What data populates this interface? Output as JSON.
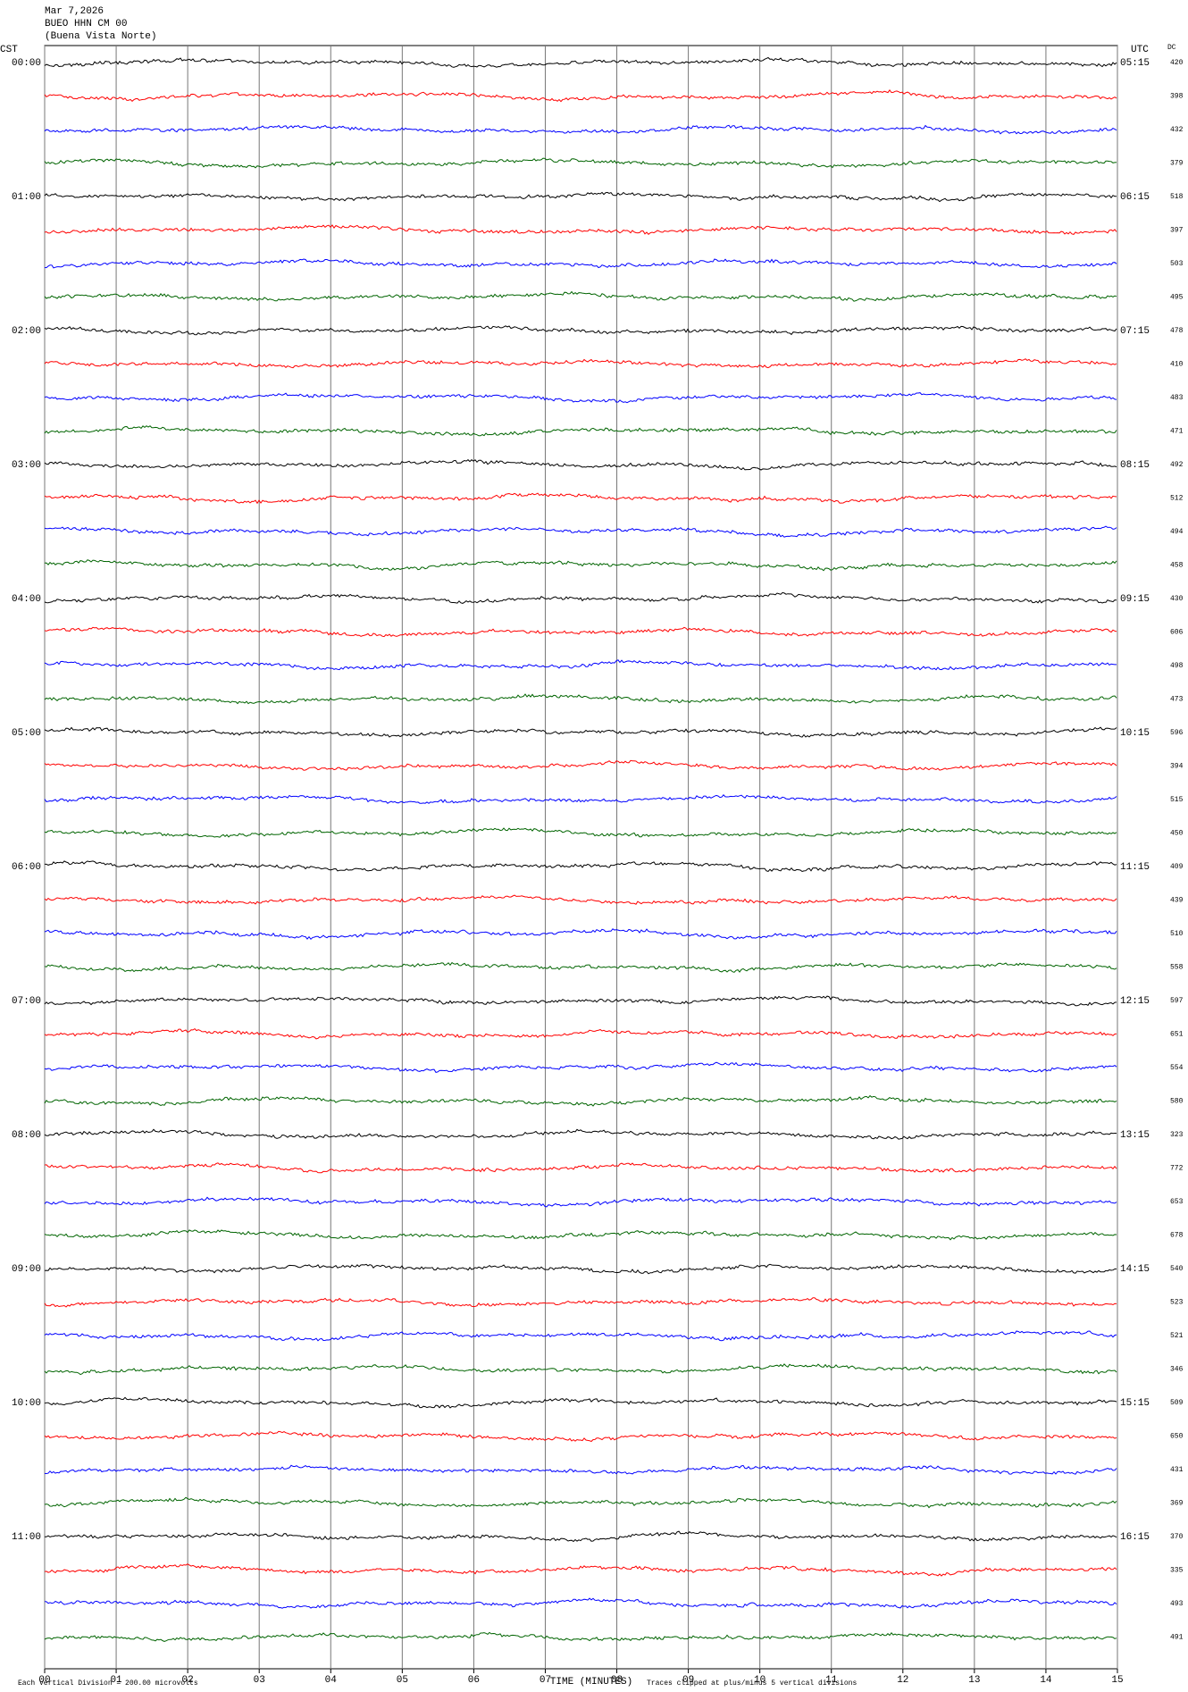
{
  "header": {
    "date": "Mar 7,2026",
    "station": "BUEO HHN CM 00",
    "location": "(Buena Vista Norte)"
  },
  "left_axis_title": "CST",
  "right_axis_title": "UTC",
  "dc_title": "DC",
  "cst_labels": [
    "00:00",
    "01:00",
    "02:00",
    "03:00",
    "04:00",
    "05:00",
    "06:00",
    "07:00",
    "08:00",
    "09:00",
    "10:00",
    "11:00"
  ],
  "utc_labels": [
    "05:15",
    "06:15",
    "07:15",
    "08:15",
    "09:15",
    "10:15",
    "11:15",
    "12:15",
    "13:15",
    "14:15",
    "15:15",
    "16:15"
  ],
  "dc_values": [
    420,
    398,
    432,
    379,
    518,
    397,
    503,
    495,
    478,
    410,
    483,
    471,
    492,
    512,
    494,
    458,
    430,
    606,
    498,
    473,
    596,
    394,
    515,
    450,
    409,
    439,
    510,
    558,
    597,
    651,
    554,
    580,
    323,
    772,
    653,
    678,
    540,
    523,
    521,
    346,
    509,
    650,
    431,
    369,
    370,
    335,
    493,
    491
  ],
  "trace_colors": [
    "#000000",
    "#ff0000",
    "#0000ff",
    "#006400"
  ],
  "x_axis": {
    "title": "TIME (MINUTES)",
    "xlim": [
      0,
      15
    ],
    "xticks": [
      {
        "value": 0,
        "label": "00"
      },
      {
        "value": 1,
        "label": "01"
      },
      {
        "value": 2,
        "label": "02"
      },
      {
        "value": 3,
        "label": "03"
      },
      {
        "value": 4,
        "label": "04"
      },
      {
        "value": 5,
        "label": "05"
      },
      {
        "value": 6,
        "label": "06"
      },
      {
        "value": 7,
        "label": "07"
      },
      {
        "value": 8,
        "label": "08"
      },
      {
        "value": 9,
        "label": "09"
      },
      {
        "value": 10,
        "label": "10"
      },
      {
        "value": 11,
        "label": "11"
      },
      {
        "value": 12,
        "label": "12"
      },
      {
        "value": 13,
        "label": "13"
      },
      {
        "value": 14,
        "label": "14"
      },
      {
        "value": 15,
        "label": "15"
      }
    ]
  },
  "footer": {
    "scale_note": "Each Vertical Division =  200.00 microvolts",
    "clip_note": "Traces clipped at plus/minus 5 vertical divisions"
  }
}
